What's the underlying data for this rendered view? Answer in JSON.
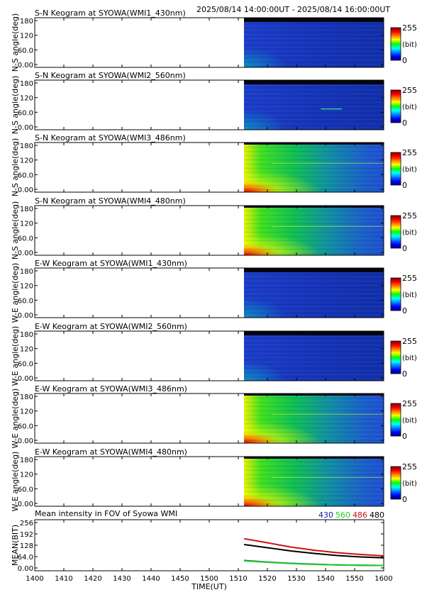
{
  "header": {
    "time_range": "2025/08/14 14:00:00UT - 2025/08/14 16:00:00UT"
  },
  "colorbar": {
    "max_label": "255",
    "unit_label": "(bit)",
    "min_label": "0"
  },
  "keogram_y_ticks": [
    "180",
    "120",
    "60.0",
    "0.00"
  ],
  "keograms": [
    {
      "title": "S-N Keogram at SYOWA(WMI1_430nm)",
      "ylabel": "N-S angle(deg)",
      "style": "dim"
    },
    {
      "title": "S-N Keogram at SYOWA(WMI2_560nm)",
      "ylabel": "N-S angle(deg)",
      "style": "dim",
      "streak_note": "thin bright line near 80 deg late in interval"
    },
    {
      "title": "S-N Keogram at SYOWA(WMI3_486nm)",
      "ylabel": "N-S angle(deg)",
      "style": "bright"
    },
    {
      "title": "S-N Keogram at SYOWA(WMI4_480nm)",
      "ylabel": "N-S angle(deg)",
      "style": "bright"
    },
    {
      "title": "E-W Keogram at SYOWA(WMI1_430nm)",
      "ylabel": "W-E angle(deg)",
      "style": "dim"
    },
    {
      "title": "E-W Keogram at SYOWA(WMI2_560nm)",
      "ylabel": "W-E angle(deg)",
      "style": "dim"
    },
    {
      "title": "E-W Keogram at SYOWA(WMI3_486nm)",
      "ylabel": "W-E angle(deg)",
      "style": "bright"
    },
    {
      "title": "E-W Keogram at SYOWA(WMI4_480nm)",
      "ylabel": "W-E angle(deg)",
      "style": "bright"
    }
  ],
  "mean_panel": {
    "title": "Mean intensity in FOV of Syowa WMI",
    "ylabel": "MEAN(BIT)",
    "y_ticks": [
      "256",
      "192",
      "128",
      "64.0",
      "0.00"
    ],
    "legend": [
      {
        "label": "430",
        "color": "#1a1aa0"
      },
      {
        "label": "560",
        "color": "#22cc22"
      },
      {
        "label": "486",
        "color": "#cc1111"
      },
      {
        "label": "480",
        "color": "#000000"
      }
    ]
  },
  "x_ticks": [
    "1400",
    "1410",
    "1420",
    "1430",
    "1440",
    "1450",
    "1500",
    "1510",
    "1520",
    "1530",
    "1540",
    "1550",
    "1600"
  ],
  "xlabel": "TIME(UT)",
  "chart_data": {
    "type": "line",
    "title": "Mean intensity in FOV of Syowa WMI",
    "xlabel": "TIME(UT)",
    "ylabel": "MEAN(BIT)",
    "x_range_minutes": [
      0,
      120
    ],
    "ylim": [
      0,
      256
    ],
    "data_start_minute": 72,
    "x": [
      72,
      80,
      88,
      96,
      104,
      112,
      120
    ],
    "series": [
      {
        "name": "430",
        "color": "#1a1aa0",
        "values": [
          42,
          33,
          26,
          21,
          17,
          15,
          14
        ]
      },
      {
        "name": "560",
        "color": "#22cc22",
        "values": [
          40,
          32,
          25,
          20,
          17,
          15,
          14
        ]
      },
      {
        "name": "486",
        "color": "#cc1111",
        "values": [
          165,
          142,
          118,
          100,
          86,
          76,
          68
        ]
      },
      {
        "name": "480",
        "color": "#000000",
        "values": [
          132,
          114,
          96,
          82,
          70,
          62,
          57
        ]
      }
    ]
  }
}
